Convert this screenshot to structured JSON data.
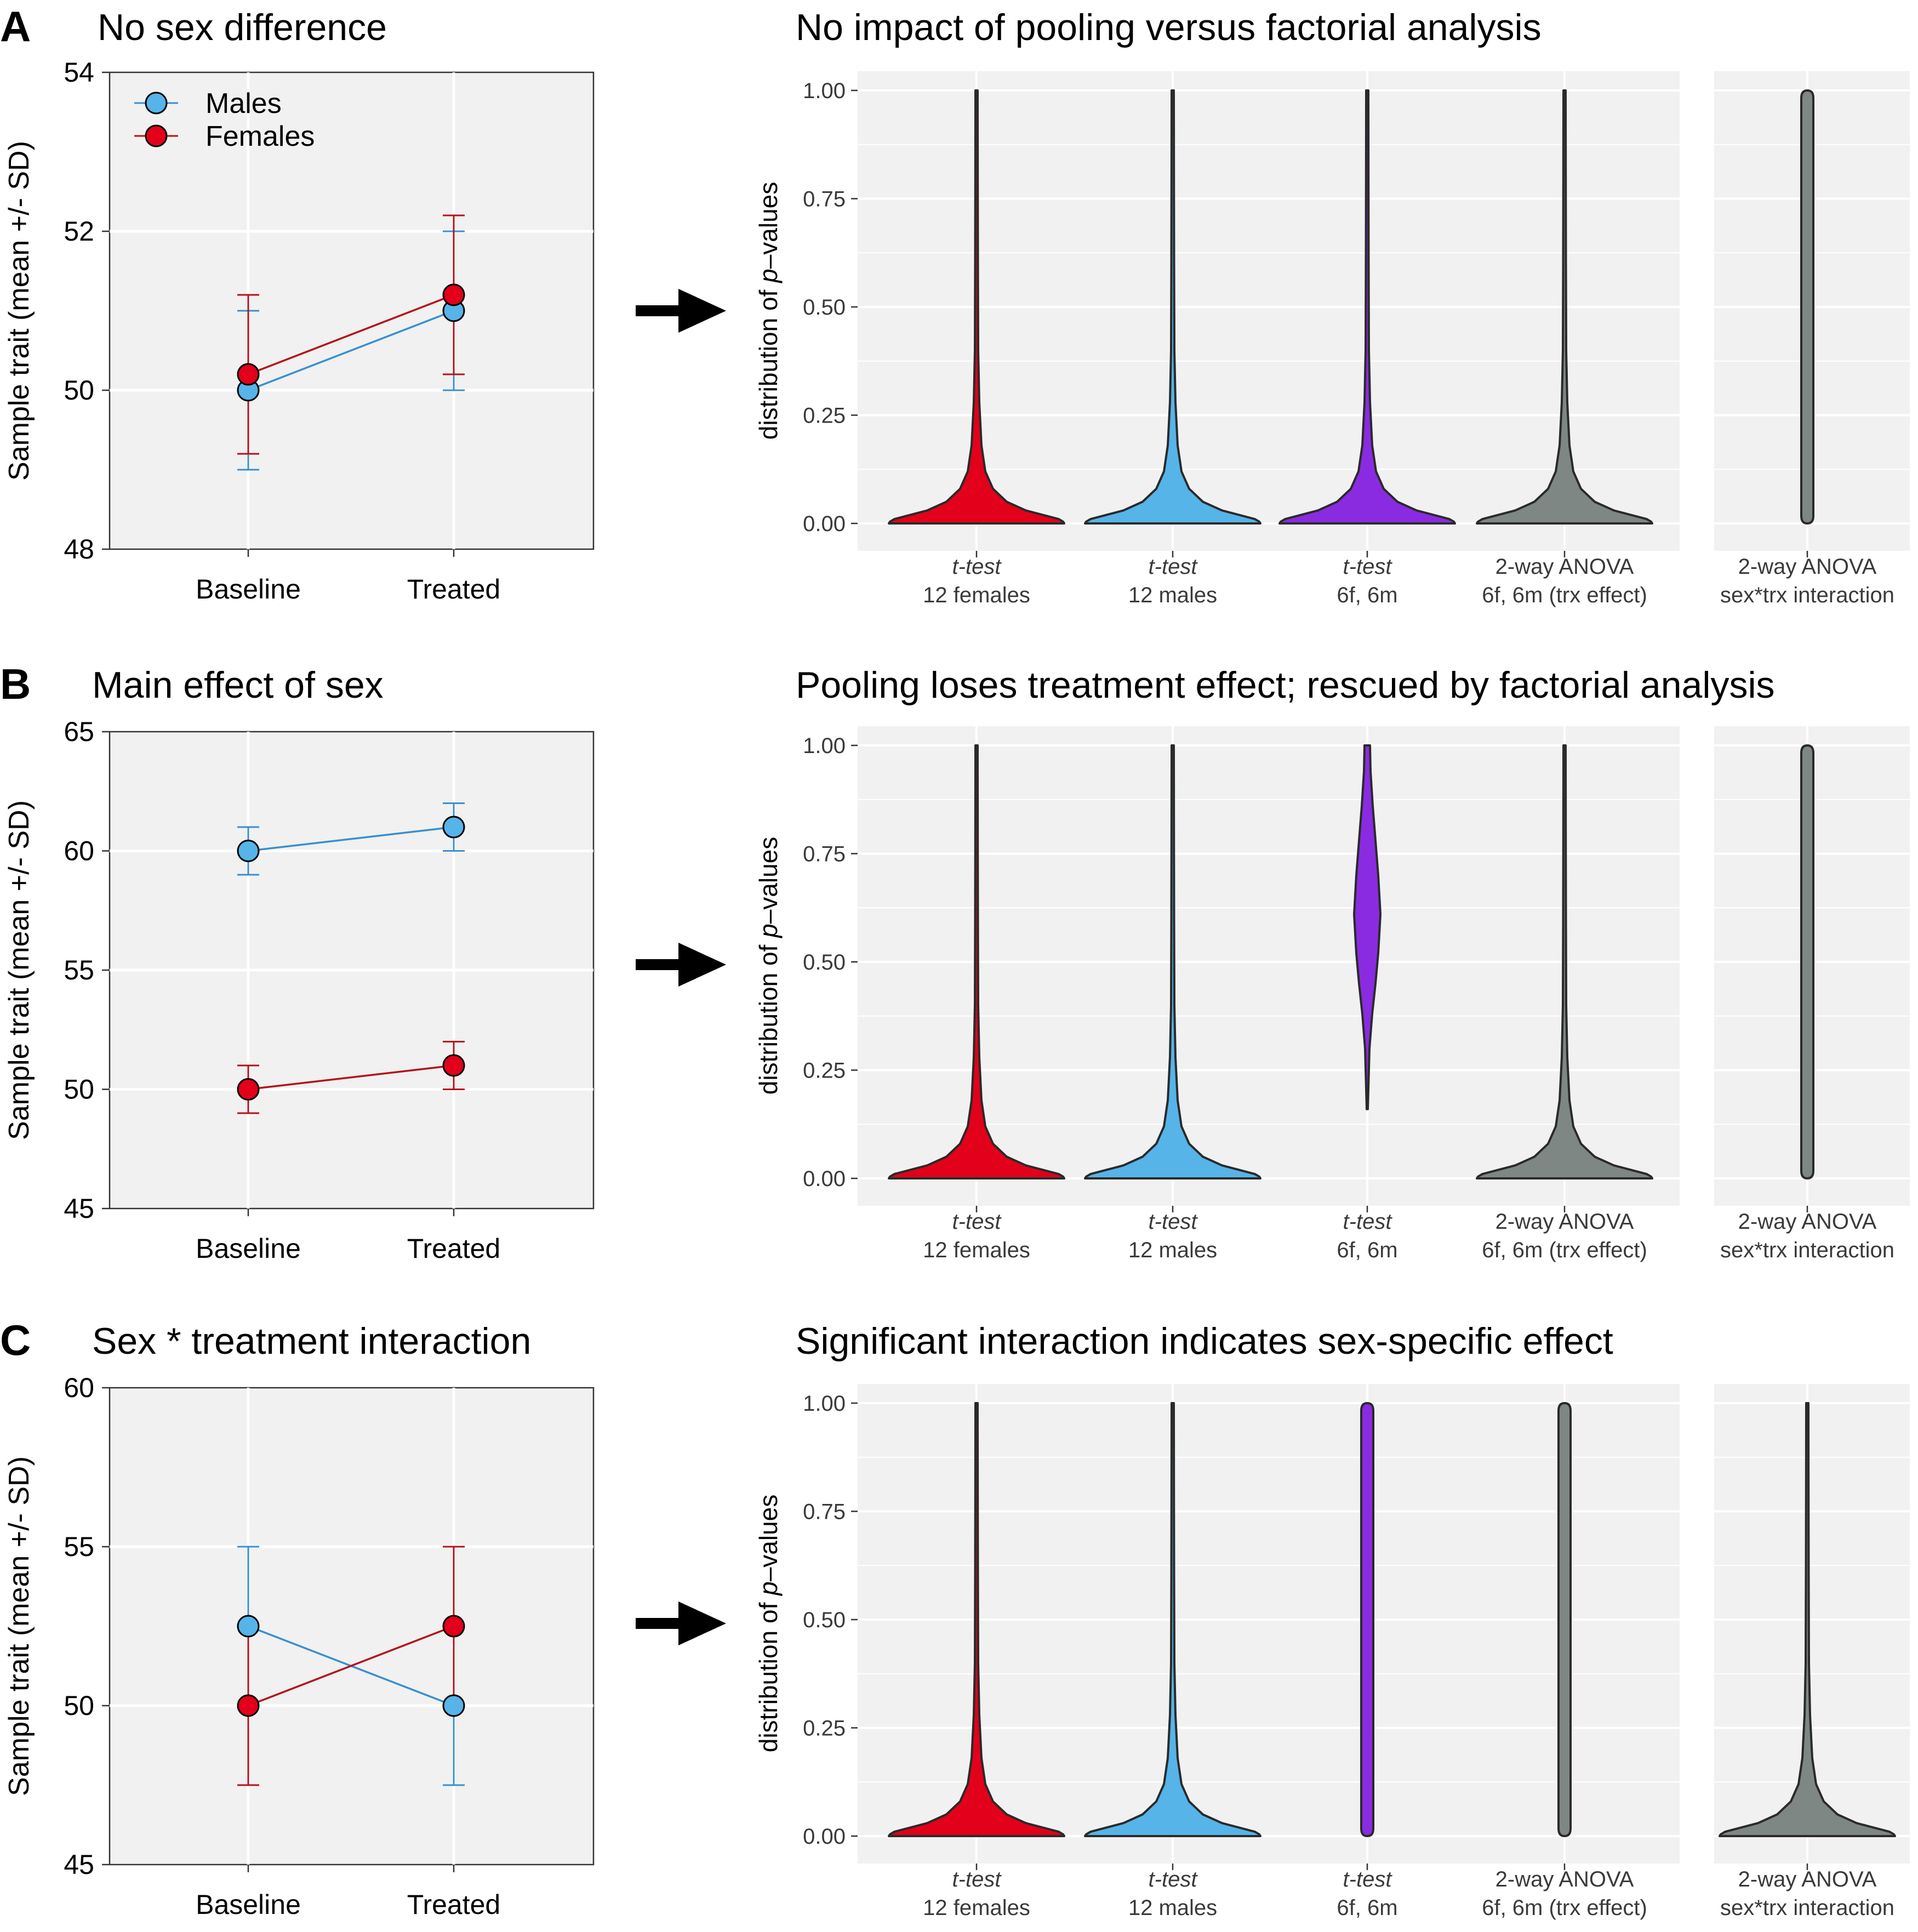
{
  "colors": {
    "males": "#56b4e9",
    "females": "#e2001a",
    "male_line": "#3a8fd0",
    "female_line": "#b5121b",
    "pooled": "#8a2be2",
    "anova": "#7f8784",
    "panel_bg": "#f0f1f0",
    "arrow": "#000000"
  },
  "legend": {
    "males": "Males",
    "females": "Females"
  },
  "chart_data": [
    {
      "id": "A-left",
      "panel_letter": "A",
      "type": "line",
      "title": "No sex difference",
      "xlabel": "",
      "ylabel": "Sample trait (mean +/- SD)",
      "categories": [
        "Baseline",
        "Treated"
      ],
      "ylim": [
        48,
        54
      ],
      "yticks": [
        48,
        50,
        52,
        54
      ],
      "series": [
        {
          "name": "Males",
          "values": [
            50.0,
            51.0
          ],
          "sd": [
            1.0,
            1.0
          ]
        },
        {
          "name": "Females",
          "values": [
            50.2,
            51.2
          ],
          "sd": [
            1.0,
            1.0
          ]
        }
      ]
    },
    {
      "id": "A-right",
      "type": "violin",
      "title": "No impact of pooling versus factorial analysis",
      "ylabel_prefix": "distribution of ",
      "ylabel_italic": "p",
      "ylabel_suffix": "–values",
      "ylim": [
        0,
        1
      ],
      "yticks": [
        "0.00",
        "0.25",
        "0.50",
        "0.75",
        "1.00"
      ],
      "categories": [
        {
          "test": "t-test",
          "detail": "12 females",
          "group": "females",
          "shape": "skewed",
          "min": 0.0,
          "max": 1.0
        },
        {
          "test": "t-test",
          "detail": "12 males",
          "group": "males",
          "shape": "skewed",
          "min": 0.0,
          "max": 1.0
        },
        {
          "test": "t-test",
          "detail": "6f, 6m",
          "group": "pooled",
          "shape": "skewed",
          "min": 0.0,
          "max": 1.0
        },
        {
          "test": "2-way ANOVA",
          "detail": "6f, 6m (trx effect)",
          "group": "anova",
          "shape": "skewed",
          "min": 0.0,
          "max": 1.0
        },
        {
          "test": "2-way ANOVA",
          "detail": "sex*trx interaction",
          "group": "anova",
          "shape": "uniform",
          "min": 0.0,
          "max": 1.0
        }
      ]
    },
    {
      "id": "B-left",
      "panel_letter": "B",
      "type": "line",
      "title": "Main effect of sex",
      "xlabel": "",
      "ylabel": "Sample trait (mean +/- SD)",
      "categories": [
        "Baseline",
        "Treated"
      ],
      "ylim": [
        45,
        65
      ],
      "yticks": [
        45,
        50,
        55,
        60,
        65
      ],
      "series": [
        {
          "name": "Males",
          "values": [
            60.0,
            61.0
          ],
          "sd": [
            1.0,
            1.0
          ]
        },
        {
          "name": "Females",
          "values": [
            50.0,
            51.0
          ],
          "sd": [
            1.0,
            1.0
          ]
        }
      ]
    },
    {
      "id": "B-right",
      "type": "violin",
      "title": "Pooling loses treatment effect; rescued by factorial analysis",
      "ylabel_prefix": "distribution of ",
      "ylabel_italic": "p",
      "ylabel_suffix": "–values",
      "ylim": [
        0,
        1
      ],
      "yticks": [
        "0.00",
        "0.25",
        "0.50",
        "0.75",
        "1.00"
      ],
      "categories": [
        {
          "test": "t-test",
          "detail": "12 females",
          "group": "females",
          "shape": "skewed",
          "min": 0.0,
          "max": 1.0
        },
        {
          "test": "t-test",
          "detail": "12 males",
          "group": "males",
          "shape": "skewed",
          "min": 0.0,
          "max": 1.0
        },
        {
          "test": "t-test",
          "detail": "6f, 6m",
          "group": "pooled",
          "shape": "diamond",
          "min": 0.16,
          "max": 1.0,
          "mode": 0.61
        },
        {
          "test": "2-way ANOVA",
          "detail": "6f, 6m (trx effect)",
          "group": "anova",
          "shape": "skewed",
          "min": 0.0,
          "max": 1.0
        },
        {
          "test": "2-way ANOVA",
          "detail": "sex*trx interaction",
          "group": "anova",
          "shape": "uniform",
          "min": 0.0,
          "max": 1.0
        }
      ]
    },
    {
      "id": "C-left",
      "panel_letter": "C",
      "type": "line",
      "title": "Sex * treatment interaction",
      "xlabel": "",
      "ylabel": "Sample trait (mean +/- SD)",
      "categories": [
        "Baseline",
        "Treated"
      ],
      "ylim": [
        45,
        60
      ],
      "yticks": [
        45,
        50,
        55,
        60
      ],
      "series": [
        {
          "name": "Males",
          "values": [
            52.5,
            50.0
          ],
          "sd": [
            2.5,
            2.5
          ]
        },
        {
          "name": "Females",
          "values": [
            50.0,
            52.5
          ],
          "sd": [
            2.5,
            2.5
          ]
        }
      ]
    },
    {
      "id": "C-right",
      "type": "violin",
      "title": "Significant interaction indicates sex-specific effect",
      "ylabel_prefix": "distribution of ",
      "ylabel_italic": "p",
      "ylabel_suffix": "–values",
      "ylim": [
        0,
        1
      ],
      "yticks": [
        "0.00",
        "0.25",
        "0.50",
        "0.75",
        "1.00"
      ],
      "categories": [
        {
          "test": "t-test",
          "detail": "12 females",
          "group": "females",
          "shape": "skewed",
          "min": 0.0,
          "max": 1.0
        },
        {
          "test": "t-test",
          "detail": "12 males",
          "group": "males",
          "shape": "skewed",
          "min": 0.0,
          "max": 1.0
        },
        {
          "test": "t-test",
          "detail": "6f, 6m",
          "group": "pooled",
          "shape": "uniform",
          "min": 0.0,
          "max": 1.0
        },
        {
          "test": "2-way ANOVA",
          "detail": "6f, 6m (trx effect)",
          "group": "anova",
          "shape": "uniform",
          "min": 0.0,
          "max": 1.0
        },
        {
          "test": "2-way ANOVA",
          "detail": "sex*trx interaction",
          "group": "anova",
          "shape": "skewed",
          "min": 0.0,
          "max": 1.0
        }
      ]
    }
  ]
}
